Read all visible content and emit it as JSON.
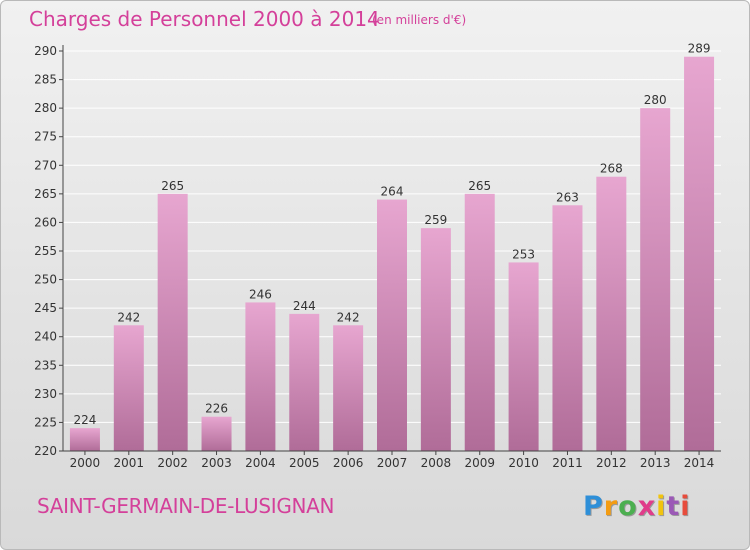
{
  "title": "Charges de Personnel 2000 à 2014",
  "subtitle": "(en milliers d'€)",
  "commune": "SAINT-GERMAIN-DE-LUSIGNAN",
  "logo": {
    "letters": [
      "P",
      "r",
      "o",
      "x",
      "i",
      "t",
      "i"
    ],
    "colors": [
      "#2e8fd8",
      "#f39c12",
      "#4caf50",
      "#e03c8a",
      "#f1c40f",
      "#9b59b6",
      "#e74c3c"
    ]
  },
  "colors": {
    "bar_top": "#e7a6d0",
    "bar_bottom": "#b06c98",
    "title": "#d4409a",
    "grid": "#ffffff"
  },
  "chart_data": {
    "type": "bar",
    "categories": [
      "2000",
      "2001",
      "2002",
      "2003",
      "2004",
      "2005",
      "2006",
      "2007",
      "2008",
      "2009",
      "2010",
      "2011",
      "2012",
      "2013",
      "2014"
    ],
    "values": [
      224,
      242,
      265,
      226,
      246,
      244,
      242,
      264,
      259,
      265,
      253,
      263,
      268,
      280,
      289
    ],
    "value_labels": [
      "224",
      "242",
      "265",
      "226",
      "246",
      "244",
      "242",
      "264",
      "259",
      "265",
      "253",
      "263",
      "268",
      "280",
      "289"
    ],
    "title": "Charges de Personnel 2000 à 2014",
    "subtitle": "(en milliers d'€)",
    "ylim": [
      220,
      290
    ],
    "yticks": [
      "220",
      "225",
      "230",
      "235",
      "240",
      "245",
      "250",
      "255",
      "260",
      "265",
      "270",
      "275",
      "280",
      "285",
      "290"
    ],
    "grid": true,
    "legend": "none"
  }
}
